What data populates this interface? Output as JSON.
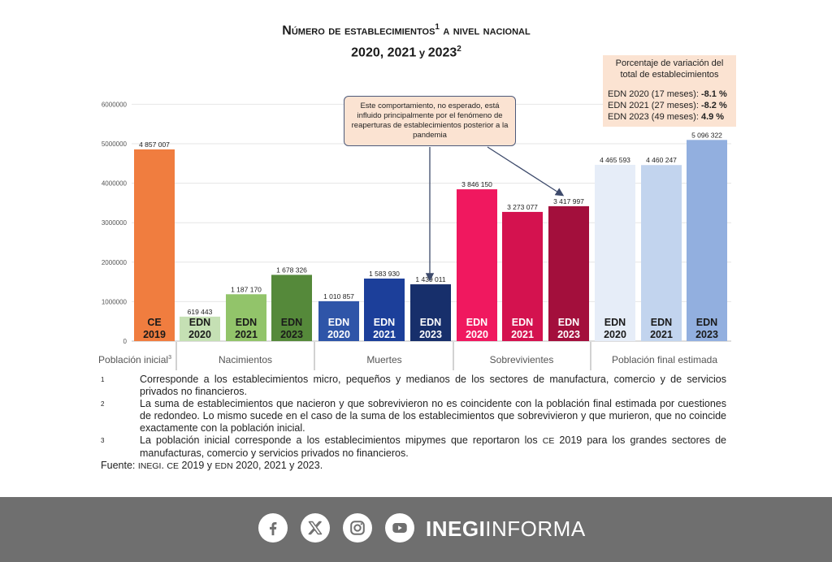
{
  "title": {
    "line1_main": "Número de establecimientos",
    "line1_sup": "1",
    "line1_tail": " a nivel nacional",
    "line2_years": "2020, 2021",
    "line2_y": " y ",
    "line2_last": "2023",
    "line2_sup": "2"
  },
  "variation_box": {
    "header_line1": "Porcentaje de variación del",
    "header_line2": "total de establecimientos",
    "rows": [
      {
        "label": "EDN 2020 (17 meses):",
        "value": "-8.1 %"
      },
      {
        "label": "EDN 2021 (27 meses):",
        "value": "-8.2 %"
      },
      {
        "label": "EDN 2023 (49 meses):",
        "value": "4.9 %"
      }
    ]
  },
  "annotation": "Este comportamiento, no esperado, está influido principalmente por el fenómeno de reaperturas de establecimientos posterior a la pandemia",
  "chart_data": {
    "type": "bar",
    "y_ticks": [
      "0",
      "1000000",
      "2000000",
      "3000000",
      "4000000",
      "5000000",
      "6000000"
    ],
    "ylim": [
      0,
      6000000
    ],
    "groups": [
      {
        "name": "Población inicial",
        "sup": "3"
      },
      {
        "name": "Nacimientos"
      },
      {
        "name": "Muertes"
      },
      {
        "name": "Sobrevivientes"
      },
      {
        "name": "Población final estimada"
      }
    ],
    "bars": [
      {
        "group": 0,
        "line1": "CE",
        "line2": "2019",
        "value": 4857007,
        "label": "4 857 007",
        "color": "#f07d3f",
        "text_color": "#1a1a1a"
      },
      {
        "group": 1,
        "line1": "EDN",
        "line2": "2020",
        "value": 619443,
        "label": "619 443",
        "color": "#c5e0b4",
        "text_color": "#1a1a1a"
      },
      {
        "group": 1,
        "line1": "EDN",
        "line2": "2021",
        "value": 1187170,
        "label": "1 187 170",
        "color": "#92c46a",
        "text_color": "#1a1a1a"
      },
      {
        "group": 1,
        "line1": "EDN",
        "line2": "2023",
        "value": 1678326,
        "label": "1 678 326",
        "color": "#55893a",
        "text_color": "#1a1a1a"
      },
      {
        "group": 2,
        "line1": "EDN",
        "line2": "2020",
        "value": 1010857,
        "label": "1 010 857",
        "color": "#2f55a8",
        "text_color": "#ffffff"
      },
      {
        "group": 2,
        "line1": "EDN",
        "line2": "2021",
        "value": 1583930,
        "label": "1 583 930",
        "color": "#1c3f9a",
        "text_color": "#ffffff"
      },
      {
        "group": 2,
        "line1": "EDN",
        "line2": "2023",
        "value": 1439011,
        "label": "1 439 011",
        "color": "#172f6b",
        "text_color": "#ffffff"
      },
      {
        "group": 3,
        "line1": "EDN",
        "line2": "2020",
        "value": 3846150,
        "label": "3 846 150",
        "color": "#f0185f",
        "text_color": "#ffffff"
      },
      {
        "group": 3,
        "line1": "EDN",
        "line2": "2021",
        "value": 3273077,
        "label": "3 273 077",
        "color": "#d4124f",
        "text_color": "#ffffff"
      },
      {
        "group": 3,
        "line1": "EDN",
        "line2": "2023",
        "value": 3417997,
        "label": "3 417 997",
        "color": "#a30f3c",
        "text_color": "#ffffff"
      },
      {
        "group": 4,
        "line1": "EDN",
        "line2": "2020",
        "value": 4465593,
        "label": "4 465 593",
        "color": "#e6edf8",
        "text_color": "#1a1a1a"
      },
      {
        "group": 4,
        "line1": "EDN",
        "line2": "2021",
        "value": 4460247,
        "label": "4 460 247",
        "color": "#c2d4ee",
        "text_color": "#1a1a1a"
      },
      {
        "group": 4,
        "line1": "EDN",
        "line2": "2023",
        "value": 5096322,
        "label": "5 096 322",
        "color": "#92afdf",
        "text_color": "#1a1a1a"
      }
    ]
  },
  "notes": [
    {
      "num": "1",
      "text": "Corresponde a los establecimientos micro, pequeños y medianos de los sectores de manufactura, comercio y de servicios privados no financieros."
    },
    {
      "num": "2",
      "text": "La suma de establecimientos que nacieron y que sobrevivieron no es coincidente con la población final estimada por cuestiones de redondeo. Lo mismo sucede en el caso de la suma de los establecimientos que sobrevivieron y que murieron, que no coincide exactamente con la población inicial."
    },
    {
      "num": "3",
      "text_a": "La población inicial corresponde a los establecimientos mipymes que reportaron los ",
      "text_sc": "CE",
      "text_b": " 2019 para los grandes sectores de manufacturas, comercio y servicios privados no financieros."
    }
  ],
  "source": {
    "prefix": "Fuente: ",
    "org": "INEGI",
    "mid1": ". ",
    "ce": "CE",
    "mid2": " 2019 y ",
    "edn": "EDN",
    "tail": " 2020, 2021 y 2023."
  },
  "footer": {
    "icons": [
      "facebook-icon",
      "x-icon",
      "instagram-icon",
      "youtube-icon"
    ],
    "brand_bold": "INEGI",
    "brand_rest": "INFORMA"
  }
}
